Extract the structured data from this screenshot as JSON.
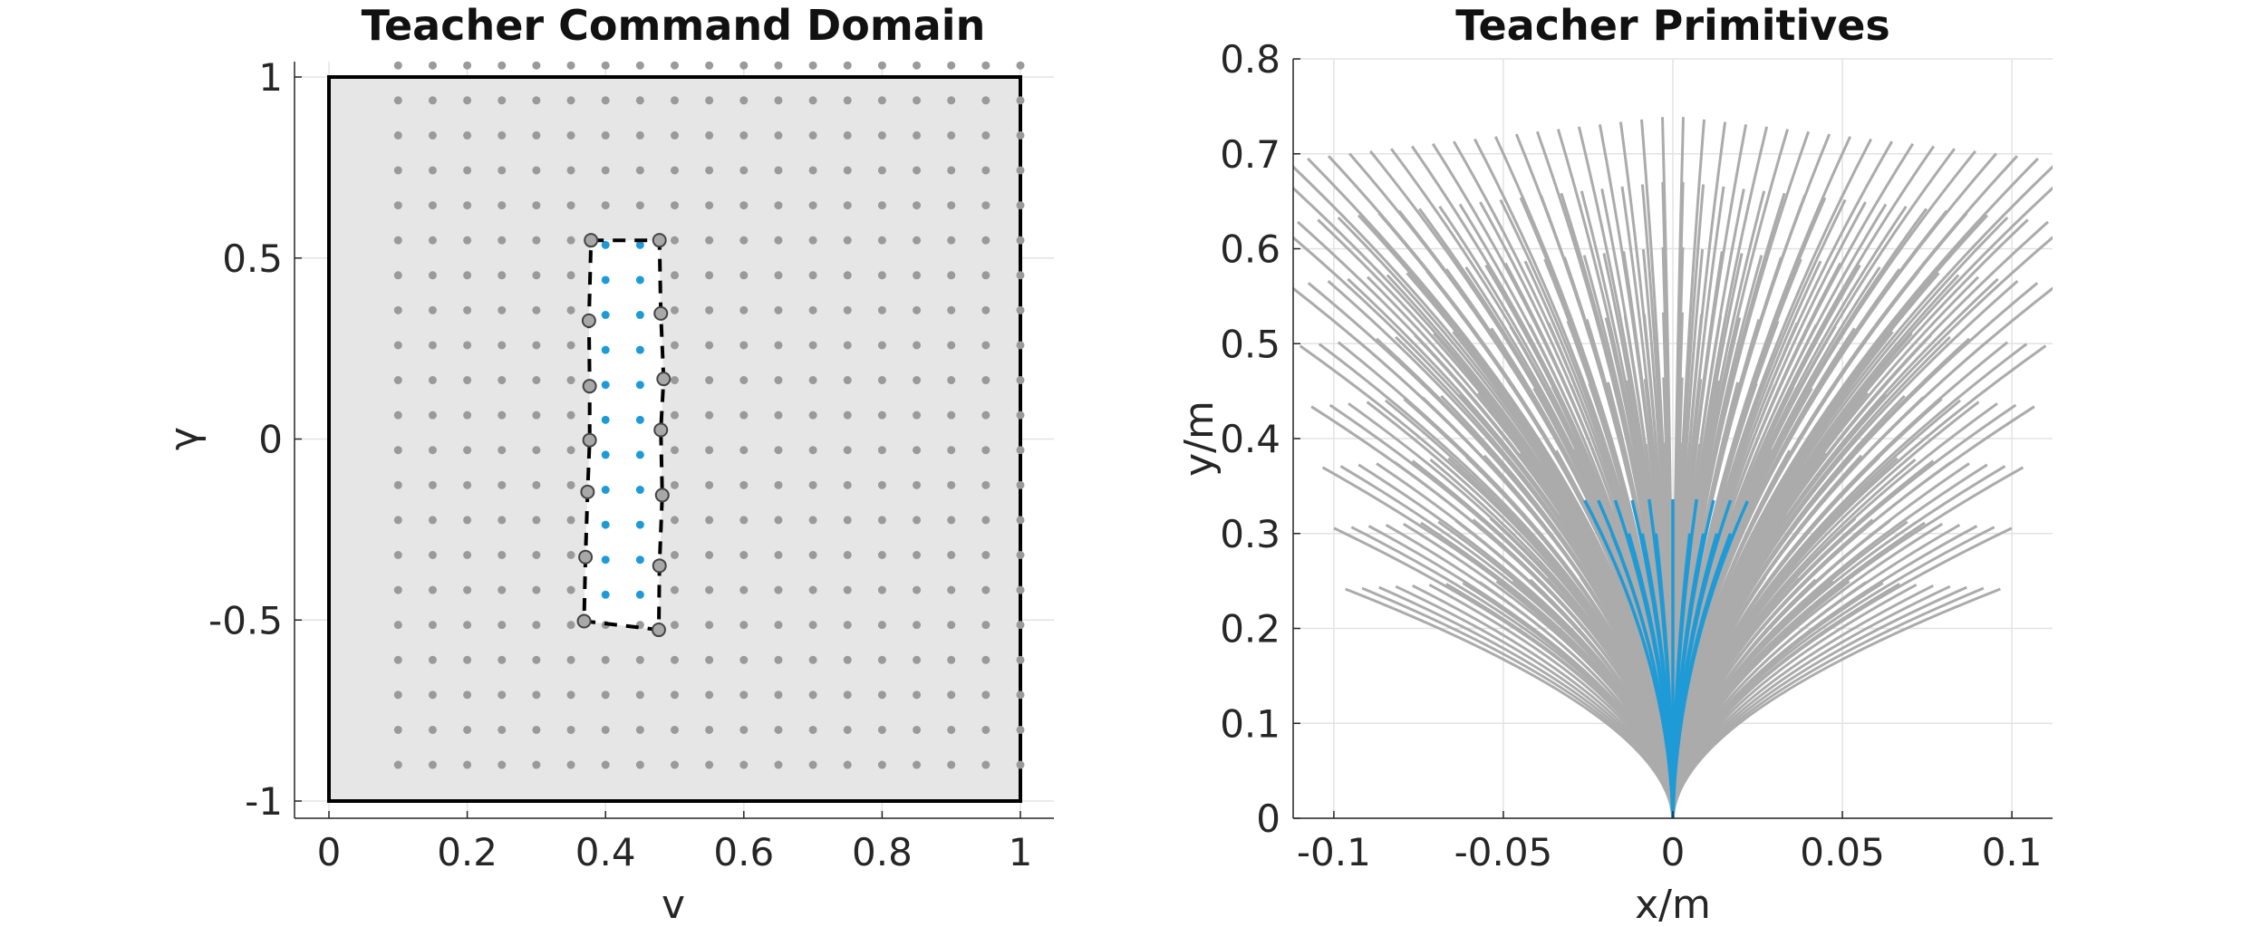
{
  "chart_data": [
    {
      "type": "scatter",
      "title": "Teacher Command Domain",
      "xlabel": "v",
      "ylabel": "γ",
      "xlim": [
        0,
        1
      ],
      "ylim": [
        -1,
        1
      ],
      "xticks": [
        "0",
        "0.2",
        "0.4",
        "0.6",
        "0.8",
        "1"
      ],
      "xtick_values": [
        0,
        0.2,
        0.4,
        0.6,
        0.8,
        1
      ],
      "yticks": [
        "-1",
        "-0.5",
        "0",
        "0.5",
        "1"
      ],
      "ytick_values": [
        -1,
        -0.5,
        0,
        0.5,
        1
      ],
      "grid": true,
      "domain_rectangle": {
        "v": [
          0,
          1
        ],
        "gamma": [
          -1,
          1
        ],
        "fill": "#e6e6e6",
        "style": "solid"
      },
      "grid_points": {
        "v_start": 0.1,
        "v_end": 1.0,
        "v_step": 0.05,
        "gamma_start": -0.9,
        "gamma_end": 1.0,
        "gamma_step": 0.0966,
        "color": "#9a9a9a"
      },
      "highlight_points": {
        "v": [
          0.4,
          0.45
        ],
        "gamma_start": -0.43,
        "gamma_end": 0.55,
        "gamma_step": 0.0966,
        "color": "#1e9bd7"
      },
      "region_polygon": {
        "style": "dashed",
        "vertices": [
          [
            0.379,
            0.549
          ],
          [
            0.478,
            0.549
          ],
          [
            0.48,
            0.347
          ],
          [
            0.484,
            0.166
          ],
          [
            0.48,
            0.025
          ],
          [
            0.482,
            -0.155
          ],
          [
            0.478,
            -0.35
          ],
          [
            0.477,
            -0.527
          ],
          [
            0.369,
            -0.503
          ],
          [
            0.371,
            -0.326
          ],
          [
            0.374,
            -0.146
          ],
          [
            0.377,
            -0.003
          ],
          [
            0.377,
            0.146
          ],
          [
            0.376,
            0.327
          ]
        ]
      }
    },
    {
      "type": "line",
      "title": "Teacher Primitives",
      "xlabel": "x/m",
      "ylabel": "y/m",
      "xlim": [
        -0.112,
        0.112
      ],
      "ylim": [
        0,
        0.8
      ],
      "xticks": [
        "-0.1",
        "-0.05",
        "0",
        "0.05",
        "0.1"
      ],
      "xtick_values": [
        -0.1,
        -0.05,
        0,
        0.05,
        0.1
      ],
      "yticks": [
        "0",
        "0.1",
        "0.2",
        "0.3",
        "0.4",
        "0.5",
        "0.6",
        "0.7",
        "0.8"
      ],
      "ytick_values": [
        0,
        0.1,
        0.2,
        0.3,
        0.4,
        0.5,
        0.6,
        0.7,
        0.8
      ],
      "grid": true,
      "origin": [
        0,
        0
      ],
      "gray_primitives": {
        "color": "#ababab",
        "endpoint_x_range": [
          -0.112,
          0.112
        ],
        "max_y": 0.74
      },
      "blue_primitives": {
        "color": "#1e9bd7",
        "endpoints": [
          [
            -0.026,
            0.335
          ],
          [
            -0.022,
            0.335
          ],
          [
            -0.017,
            0.335
          ],
          [
            -0.012,
            0.335
          ],
          [
            -0.007,
            0.336
          ],
          [
            0.0,
            0.336
          ],
          [
            0.007,
            0.336
          ],
          [
            0.012,
            0.335
          ],
          [
            0.017,
            0.335
          ],
          [
            0.022,
            0.334
          ],
          [
            -0.018,
            0.3
          ],
          [
            -0.013,
            0.3
          ],
          [
            -0.009,
            0.3
          ],
          [
            -0.005,
            0.3
          ],
          [
            0.005,
            0.3
          ],
          [
            0.009,
            0.3
          ],
          [
            0.013,
            0.3
          ],
          [
            0.017,
            0.3
          ]
        ]
      }
    }
  ]
}
